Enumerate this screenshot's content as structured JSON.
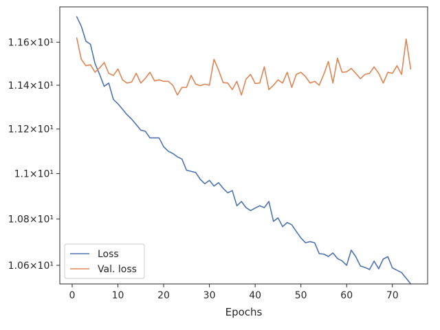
{
  "chart_data": {
    "type": "line",
    "title": "",
    "xlabel": "Epochs",
    "ylabel": "",
    "xlim": [
      -2.7,
      77.7
    ],
    "ylim": [
      10.5205,
      11.7667
    ],
    "yscale": "log",
    "grid": false,
    "legend_position": "bottom-left",
    "x_ticks": [
      0,
      10,
      20,
      30,
      40,
      50,
      60,
      70
    ],
    "x_tick_labels": [
      "0",
      "10",
      "20",
      "30",
      "40",
      "50",
      "60",
      "70"
    ],
    "y_ticks": [
      10.6,
      10.8,
      11.0,
      11.2,
      11.4,
      11.6
    ],
    "y_tick_labels": [
      "1.06×10¹",
      "1.08×10¹",
      "1.1×10¹",
      "1.12×10¹",
      "1.14×10¹",
      "1.16×10¹"
    ],
    "series": [
      {
        "name": "Loss",
        "color": "#4c72b0",
        "x": [
          1,
          2,
          3,
          4,
          5,
          6,
          7,
          8,
          9,
          10,
          11,
          12,
          13,
          14,
          15,
          16,
          17,
          18,
          19,
          20,
          21,
          22,
          23,
          24,
          25,
          26,
          27,
          28,
          29,
          30,
          31,
          32,
          33,
          34,
          35,
          36,
          37,
          38,
          39,
          40,
          41,
          42,
          43,
          44,
          45,
          46,
          47,
          48,
          49,
          50,
          51,
          52,
          53,
          54,
          55,
          56,
          57,
          58,
          59,
          60,
          61,
          62,
          63,
          64,
          65,
          66,
          67,
          68,
          69,
          70,
          71,
          72,
          73,
          74
        ],
        "y": [
          11.72,
          11.675,
          11.605,
          11.59,
          11.5,
          11.45,
          11.395,
          11.41,
          11.335,
          11.315,
          11.29,
          11.265,
          11.245,
          11.22,
          11.195,
          11.19,
          11.16,
          11.16,
          11.16,
          11.12,
          11.1,
          11.09,
          11.075,
          11.065,
          11.015,
          11.01,
          11.005,
          10.975,
          10.955,
          10.97,
          10.945,
          10.96,
          10.935,
          10.915,
          10.925,
          10.858,
          10.877,
          10.85,
          10.837,
          10.848,
          10.858,
          10.85,
          10.877,
          10.79,
          10.805,
          10.767,
          10.785,
          10.775,
          10.746,
          10.718,
          10.697,
          10.702,
          10.697,
          10.65,
          10.648,
          10.638,
          10.653,
          10.629,
          10.619,
          10.6,
          10.665,
          10.637,
          10.597,
          10.591,
          10.582,
          10.618,
          10.585,
          10.627,
          10.637,
          10.589,
          10.579,
          10.569,
          10.545,
          10.521
        ]
      },
      {
        "name": "Val. loss",
        "color": "#dd8452",
        "x": [
          1,
          2,
          3,
          4,
          5,
          6,
          7,
          8,
          9,
          10,
          11,
          12,
          13,
          14,
          15,
          16,
          17,
          18,
          19,
          20,
          21,
          22,
          23,
          24,
          25,
          26,
          27,
          28,
          29,
          30,
          31,
          32,
          33,
          34,
          35,
          36,
          37,
          38,
          39,
          40,
          41,
          42,
          43,
          44,
          45,
          46,
          47,
          48,
          49,
          50,
          51,
          52,
          53,
          54,
          55,
          56,
          57,
          58,
          59,
          60,
          61,
          62,
          63,
          64,
          65,
          66,
          67,
          68,
          69,
          70,
          71,
          72,
          73,
          74
        ],
        "y": [
          11.62,
          11.52,
          11.49,
          11.495,
          11.46,
          11.48,
          11.505,
          11.455,
          11.445,
          11.475,
          11.425,
          11.41,
          11.415,
          11.455,
          11.41,
          11.432,
          11.46,
          11.42,
          11.425,
          11.418,
          11.418,
          11.4,
          11.355,
          11.39,
          11.39,
          11.445,
          11.405,
          11.398,
          11.405,
          11.4,
          11.52,
          11.47,
          11.412,
          11.41,
          11.38,
          11.418,
          11.355,
          11.428,
          11.45,
          11.408,
          11.41,
          11.485,
          11.38,
          11.4,
          11.425,
          11.41,
          11.46,
          11.39,
          11.45,
          11.46,
          11.44,
          11.41,
          11.418,
          11.4,
          11.45,
          11.51,
          11.41,
          11.525,
          11.46,
          11.462,
          11.478,
          11.455,
          11.43,
          11.45,
          11.455,
          11.485,
          11.455,
          11.41,
          11.46,
          11.455,
          11.49,
          11.45,
          11.615,
          11.475
        ]
      }
    ]
  }
}
